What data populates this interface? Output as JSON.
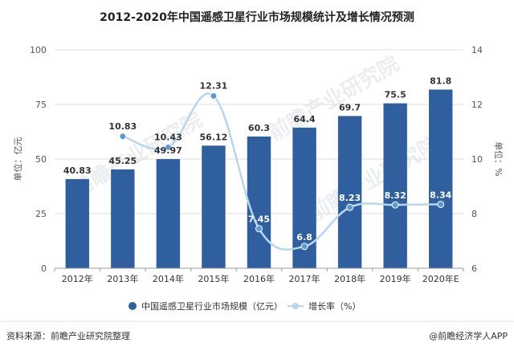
{
  "chart_data": {
    "type": "bar+line",
    "title": "2012-2020年中国遥感卫星行业市场规模统计及增长情况预测",
    "categories": [
      "2012年",
      "2013年",
      "2014年",
      "2015年",
      "2016年",
      "2017年",
      "2018年",
      "2019年",
      "2020年E"
    ],
    "series": [
      {
        "name": "中国遥感卫星行业市场规模（亿元）",
        "type": "bar",
        "axis": "left",
        "values": [
          40.83,
          45.25,
          49.97,
          56.12,
          60.3,
          64.4,
          69.7,
          75.5,
          81.8
        ],
        "labels": [
          "40.83",
          "45.25",
          "49.97",
          "56.12",
          "60.3",
          "64.4",
          "69.7",
          "75.5",
          "81.8"
        ]
      },
      {
        "name": "增长率（%）",
        "type": "line",
        "axis": "right",
        "values": [
          null,
          10.83,
          10.43,
          12.31,
          7.45,
          6.8,
          8.23,
          8.32,
          8.34
        ],
        "labels": [
          "",
          "10.83",
          "10.43",
          "12.31",
          "7.45",
          "6.8",
          "8.23",
          "8.32",
          "8.34"
        ]
      }
    ],
    "ylabel": "单位：亿元",
    "y2label": "单位：%",
    "ylim": [
      0,
      100
    ],
    "y2lim": [
      6,
      14
    ],
    "yticks": [
      "0",
      "25",
      "50",
      "75",
      "100"
    ],
    "y2ticks": [
      "6",
      "8",
      "10",
      "12",
      "14"
    ],
    "legend_position": "bottom",
    "colors": {
      "bar": "#2f5f9e",
      "line": "#b9d6ec",
      "marker": "#5b9bd5",
      "text": "#333333",
      "grid": "#dddddd"
    }
  },
  "footer": {
    "source": "资料来源：前瞻产业研究院整理",
    "brand": "@前瞻经济学人APP"
  },
  "watermark": "前瞻产业研究院"
}
